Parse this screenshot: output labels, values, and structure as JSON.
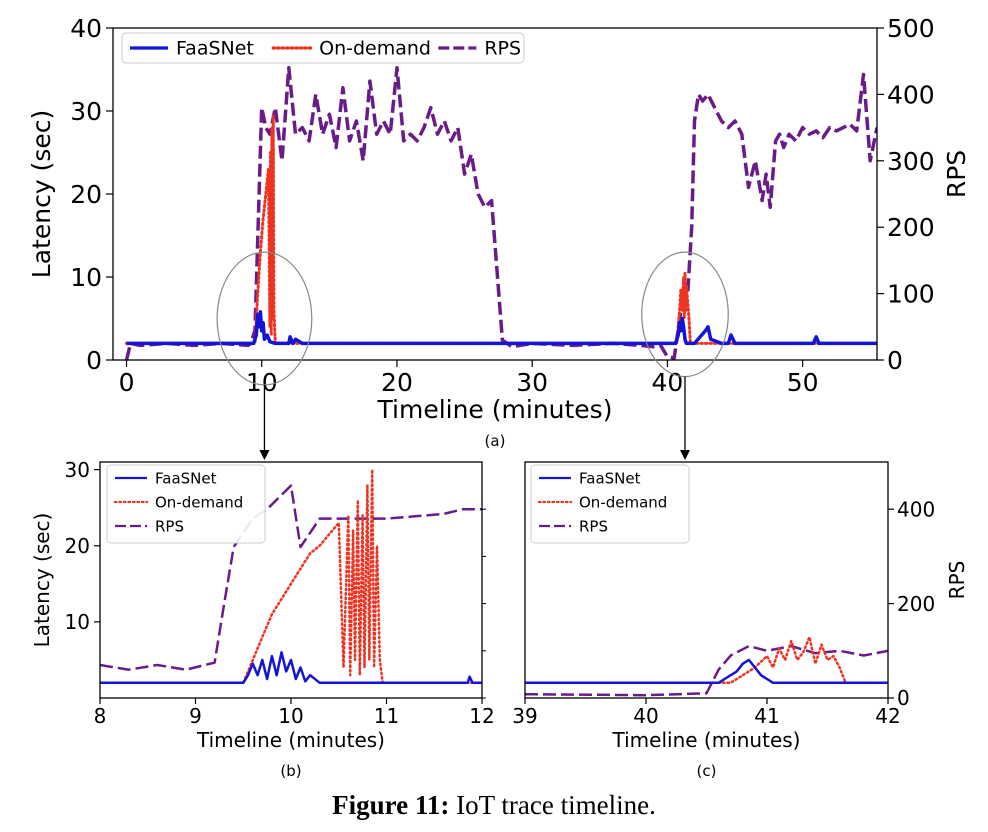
{
  "caption": {
    "label": "Figure 11:",
    "text": "IoT trace timeline."
  },
  "colors": {
    "faasnet": "#1414d8",
    "ondemand": "#ee3322",
    "rps": "#6a1b8a",
    "circle": "#888888"
  },
  "chart_data": [
    {
      "id": "a",
      "type": "line",
      "sublabel": "(a)",
      "xlabel": "Timeline (minutes)",
      "ylabel": "Latency (sec)",
      "y2label": "RPS",
      "xlim": [
        -1,
        55.5
      ],
      "ylim": [
        0,
        40
      ],
      "y2lim": [
        0,
        500
      ],
      "xticks": [
        0,
        10,
        20,
        30,
        40,
        50
      ],
      "yticks": [
        0,
        10,
        20,
        30,
        40
      ],
      "y2ticks": [
        0,
        100,
        200,
        300,
        400,
        500
      ],
      "legend": {
        "placement": "top-left",
        "horizontal": true
      },
      "annotation_circles": [
        {
          "x": 10.2,
          "y": 5,
          "rx": 3.5,
          "ry": 8
        },
        {
          "x": 41.3,
          "y": 5.5,
          "rx": 3.2,
          "ry": 7.5
        }
      ],
      "series": [
        {
          "name": "FaaSNet",
          "style": "solid",
          "axis": "left",
          "x": [
            0,
            9.4,
            9.6,
            9.7,
            9.8,
            9.9,
            10,
            10.1,
            10.2,
            10.4,
            10.6,
            11,
            11.5,
            12,
            12.1,
            12.3,
            12.5,
            13,
            20,
            30,
            40.6,
            40.8,
            40.9,
            41,
            41.1,
            41.2,
            41.3,
            41.4,
            41.6,
            42,
            42.8,
            43,
            43.2,
            44,
            44.5,
            44.7,
            45,
            50,
            50.8,
            51,
            51.2,
            55.5
          ],
          "y": [
            2,
            2,
            3,
            5.5,
            4,
            5.8,
            3.5,
            4.5,
            2.5,
            3,
            2.2,
            2,
            2,
            2,
            2.8,
            2,
            2.5,
            2,
            2,
            2,
            2,
            3,
            4.5,
            3.5,
            5,
            4,
            2.5,
            2,
            2,
            2,
            3.5,
            4,
            2.5,
            2,
            2,
            3,
            2,
            2,
            2,
            2.8,
            2,
            2
          ]
        },
        {
          "name": "On-demand",
          "style": "dotted",
          "axis": "left",
          "x": [
            0,
            9.5,
            9.7,
            9.9,
            10.1,
            10.3,
            10.5,
            10.6,
            10.65,
            10.7,
            10.75,
            10.8,
            10.85,
            10.9,
            11,
            20,
            40,
            40.7,
            40.8,
            40.9,
            41,
            41.1,
            41.2,
            41.25,
            41.3,
            41.35,
            41.4,
            41.5,
            41.6,
            41.7,
            42,
            55.5
          ],
          "y": [
            2,
            2,
            8,
            13,
            17,
            20,
            23,
            4,
            25,
            3,
            28,
            5,
            29.5,
            6,
            2,
            2,
            2,
            2,
            4,
            6,
            8.5,
            6,
            10,
            5,
            10.5,
            6,
            9,
            7,
            5,
            2,
            2,
            2
          ]
        },
        {
          "name": "RPS",
          "style": "dashed",
          "axis": "right",
          "x": [
            0,
            0.3,
            1,
            3,
            5,
            7,
            9,
            9.2,
            9.5,
            10,
            10.3,
            10.6,
            11,
            11.5,
            12,
            12.5,
            13,
            13.5,
            14,
            14.5,
            15,
            15.5,
            16,
            16.5,
            17,
            17.5,
            18,
            18.5,
            19,
            19.5,
            20,
            20.5,
            21,
            21.5,
            22,
            22.5,
            23,
            23.5,
            24,
            24.5,
            25,
            25.5,
            26,
            26.5,
            27,
            27.3,
            27.8,
            28.5,
            30,
            33,
            36,
            38,
            39,
            39.5,
            40,
            40.5,
            41,
            41.5,
            41.8,
            42,
            42.3,
            42.6,
            43,
            43.5,
            44,
            44.5,
            45,
            45.5,
            46,
            46.5,
            47,
            47.3,
            47.6,
            48,
            48.3,
            48.6,
            49,
            49.5,
            50,
            50.5,
            51,
            51.5,
            52,
            52.5,
            53,
            53.5,
            54,
            54.5,
            55,
            55.5
          ],
          "y": [
            0,
            25,
            22,
            25,
            22,
            25,
            22,
            25,
            45,
            380,
            350,
            340,
            380,
            300,
            440,
            340,
            350,
            330,
            400,
            340,
            370,
            320,
            410,
            330,
            360,
            300,
            420,
            340,
            360,
            340,
            440,
            330,
            340,
            330,
            350,
            380,
            340,
            360,
            330,
            350,
            280,
            310,
            250,
            230,
            240,
            160,
            30,
            20,
            25,
            22,
            25,
            22,
            20,
            22,
            5,
            3,
            75,
            100,
            200,
            360,
            400,
            390,
            400,
            380,
            360,
            350,
            360,
            340,
            260,
            300,
            240,
            280,
            230,
            330,
            340,
            320,
            340,
            330,
            350,
            340,
            345,
            335,
            350,
            345,
            350,
            355,
            345,
            430,
            300,
            350
          ]
        }
      ]
    },
    {
      "id": "b",
      "type": "line",
      "sublabel": "(b)",
      "xlabel": "Timeline (minutes)",
      "ylabel": "Latency (sec)",
      "xlim": [
        8,
        12
      ],
      "ylim": [
        0,
        31
      ],
      "y2lim": [
        0,
        500
      ],
      "xticks": [
        8,
        9,
        10,
        11,
        12
      ],
      "yticks": [
        10,
        20,
        30
      ],
      "legend": {
        "placement": "top-left",
        "horizontal": false
      },
      "series": [
        {
          "name": "FaaSNet",
          "style": "solid",
          "axis": "left",
          "x": [
            8,
            9.5,
            9.55,
            9.6,
            9.65,
            9.7,
            9.75,
            9.8,
            9.85,
            9.9,
            9.95,
            10,
            10.05,
            10.1,
            10.15,
            10.2,
            10.3,
            11,
            11.85,
            11.87,
            11.9,
            12
          ],
          "y": [
            2,
            2,
            3,
            4.5,
            3,
            5,
            2.5,
            5.5,
            3,
            6,
            3.5,
            5,
            2.5,
            4,
            2.2,
            3,
            2,
            2,
            2,
            2.8,
            2,
            2
          ]
        },
        {
          "name": "On-demand",
          "style": "dotted",
          "axis": "left",
          "x": [
            8,
            9.5,
            9.6,
            9.7,
            9.8,
            9.9,
            10,
            10.1,
            10.2,
            10.3,
            10.4,
            10.5,
            10.55,
            10.6,
            10.62,
            10.65,
            10.67,
            10.7,
            10.72,
            10.75,
            10.77,
            10.8,
            10.82,
            10.85,
            10.87,
            10.9,
            10.93,
            10.96,
            12
          ],
          "y": [
            2,
            2,
            5,
            8,
            11,
            13,
            15,
            17,
            19,
            20,
            21.5,
            23,
            4,
            24,
            3,
            22,
            5,
            26,
            3,
            24,
            4,
            28,
            5,
            30,
            4,
            20,
            5,
            2,
            2
          ]
        },
        {
          "name": "RPS",
          "style": "dashed",
          "axis": "right",
          "x": [
            8,
            8.3,
            8.6,
            8.9,
            9.2,
            9.3,
            9.4,
            9.6,
            9.75,
            10,
            10.1,
            10.3,
            10.6,
            11,
            11.3,
            11.6,
            11.8,
            12
          ],
          "y": [
            70,
            60,
            70,
            60,
            75,
            200,
            320,
            380,
            400,
            450,
            320,
            380,
            380,
            380,
            385,
            390,
            400,
            400
          ]
        }
      ]
    },
    {
      "id": "c",
      "type": "line",
      "sublabel": "(c)",
      "xlabel": "Timeline (minutes)",
      "y2label": "RPS",
      "xlim": [
        39,
        42
      ],
      "ylim": [
        0,
        31
      ],
      "y2lim": [
        0,
        500
      ],
      "xticks": [
        39,
        40,
        41,
        42
      ],
      "y2ticks": [
        0,
        200,
        400
      ],
      "legend": {
        "placement": "top-left",
        "horizontal": false
      },
      "series": [
        {
          "name": "FaaSNet",
          "style": "solid",
          "axis": "left",
          "x": [
            39,
            40.6,
            40.65,
            40.7,
            40.75,
            40.8,
            40.85,
            40.9,
            40.95,
            41,
            41.05,
            41.2,
            42
          ],
          "y": [
            2,
            2,
            2.5,
            3,
            3.5,
            4.5,
            5,
            4,
            3,
            2.5,
            2,
            2,
            2
          ]
        },
        {
          "name": "On-demand",
          "style": "dotted",
          "axis": "left",
          "x": [
            39,
            40.7,
            40.8,
            40.9,
            41,
            41.05,
            41.1,
            41.15,
            41.2,
            41.25,
            41.3,
            41.35,
            41.4,
            41.45,
            41.5,
            41.55,
            41.6,
            41.65,
            42
          ],
          "y": [
            2,
            2,
            3,
            4,
            5.5,
            4,
            6.5,
            5,
            7.5,
            5,
            6,
            8,
            4.5,
            7,
            5,
            5.5,
            4,
            2,
            2
          ]
        },
        {
          "name": "RPS",
          "style": "dashed",
          "axis": "right",
          "x": [
            39,
            40,
            40.5,
            40.6,
            40.7,
            40.85,
            41,
            41.2,
            41.4,
            41.6,
            41.8,
            42
          ],
          "y": [
            8,
            6,
            10,
            60,
            90,
            110,
            100,
            110,
            95,
            100,
            90,
            100
          ]
        }
      ]
    }
  ]
}
